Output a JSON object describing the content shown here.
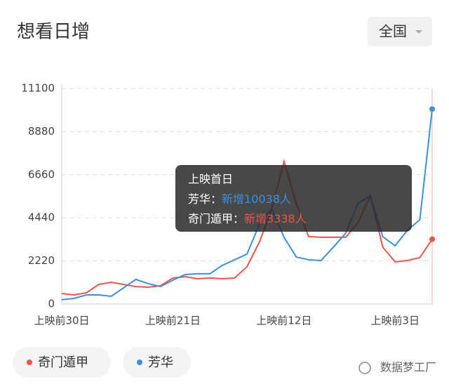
{
  "chart_data": {
    "type": "line",
    "title": "想看日增",
    "filter": "全国",
    "categories": [
      "上映前30日",
      null,
      null,
      null,
      null,
      null,
      null,
      null,
      null,
      "上映前21日",
      null,
      null,
      null,
      null,
      null,
      null,
      null,
      null,
      "上映前12日",
      null,
      null,
      null,
      null,
      null,
      null,
      null,
      null,
      "上映前3日",
      null,
      null,
      null
    ],
    "ylim": [
      0,
      11100
    ],
    "yticks": [
      0,
      2220,
      4440,
      6660,
      8880,
      11100
    ],
    "grid": true,
    "series": [
      {
        "name": "奇门遁甲",
        "color": "#e8554a",
        "values": [
          540,
          470,
          580,
          1010,
          1120,
          1010,
          900,
          870,
          940,
          1340,
          1410,
          1300,
          1340,
          1300,
          1340,
          1920,
          3180,
          4880,
          7340,
          5170,
          3470,
          3440,
          3440,
          3440,
          4190,
          5570,
          2930,
          2170,
          2240,
          2390,
          3338
        ]
      },
      {
        "name": "芳华",
        "color": "#3d8fe0",
        "values": [
          220,
          290,
          470,
          470,
          400,
          830,
          1270,
          1050,
          900,
          1230,
          1520,
          1560,
          1560,
          1990,
          2280,
          2570,
          4090,
          4920,
          3440,
          2420,
          2280,
          2240,
          2930,
          3650,
          5210,
          5570,
          3470,
          3000,
          3800,
          4340,
          10038
        ]
      }
    ],
    "tooltip": {
      "title": "上映首日",
      "items": [
        {
          "label": "芳华：",
          "text": "新增10038人"
        },
        {
          "label": "奇门遁甲：",
          "text": "新增3338人"
        }
      ]
    },
    "watermark": "数据梦工厂"
  }
}
